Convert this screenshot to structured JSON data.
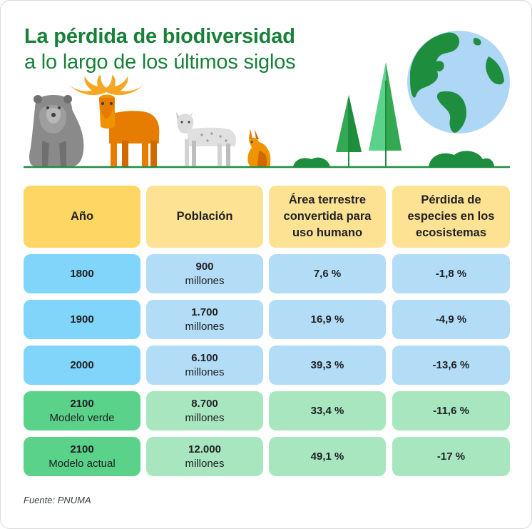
{
  "title": {
    "line1": "La pérdida de biodiversidad",
    "line2": "a lo largo de los últimos siglos"
  },
  "colors": {
    "title": "#188038",
    "header_first": "#fdd663",
    "header_other": "#fde293",
    "blue_dark": "#81d4fa",
    "blue_light": "#b3dcf7",
    "green_dark": "#5bd28a",
    "green_light": "#a8e6c0"
  },
  "table": {
    "headers": [
      {
        "line1": "Año",
        "line2": "",
        "line3": ""
      },
      {
        "line1": "Población",
        "line2": "",
        "line3": ""
      },
      {
        "line1": "Área terrestre",
        "line2": "convertida para",
        "line3": "uso humano"
      },
      {
        "line1": "Pérdida de",
        "line2": "especies en los",
        "line3": "ecosistemas"
      }
    ],
    "rows": [
      {
        "year": "1800",
        "model": "",
        "population": "900",
        "population_unit": "millones",
        "land": "7,6 %",
        "loss": "-1,8 %"
      },
      {
        "year": "1900",
        "model": "",
        "population": "1.700",
        "population_unit": "millones",
        "land": "16,9 %",
        "loss": "-4,9 %"
      },
      {
        "year": "2000",
        "model": "",
        "population": "6.100",
        "population_unit": "millones",
        "land": "39,3 %",
        "loss": "-13,6 %"
      },
      {
        "year": "2100",
        "model": "Modelo verde",
        "population": "8.700",
        "population_unit": "millones",
        "land": "33,4 %",
        "loss": "-11,6 %"
      },
      {
        "year": "2100",
        "model": "Modelo actual",
        "population": "12.000",
        "population_unit": "millones",
        "land": "49,1 %",
        "loss": "-17 %"
      }
    ]
  },
  "source": "Fuente: PNUMA",
  "illustration": {
    "animals": [
      "bear-icon",
      "moose-icon",
      "lynx-icon",
      "hare-icon"
    ],
    "plants": [
      "pine-tree-icon",
      "bush-icon"
    ],
    "globe": "globe-icon"
  }
}
